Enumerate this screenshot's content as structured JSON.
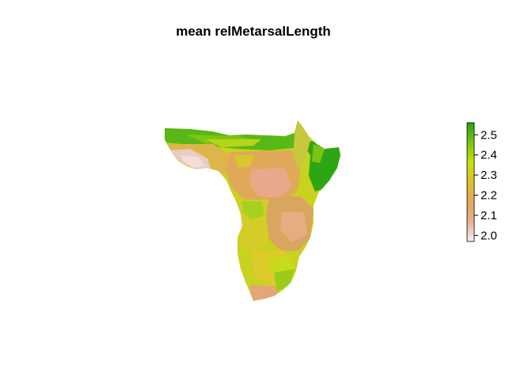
{
  "title": "mean relMetarsalLength",
  "legend": {
    "ticks": [
      "2.5",
      "2.4",
      "2.3",
      "2.2",
      "2.1",
      "2.0"
    ],
    "tick_values": [
      2.5,
      2.4,
      2.3,
      2.2,
      2.1,
      2.0
    ],
    "range": [
      1.97,
      2.56
    ],
    "colors": [
      "#F2F2F2",
      "#EAB092",
      "#E6A65C",
      "#DCC028",
      "#CBDF0E",
      "#7CC512",
      "#1FA60E"
    ],
    "placement": "right"
  },
  "map": {
    "region": "Africa",
    "high_color": "#1FA60E",
    "low_color": "#F0D8D4"
  }
}
